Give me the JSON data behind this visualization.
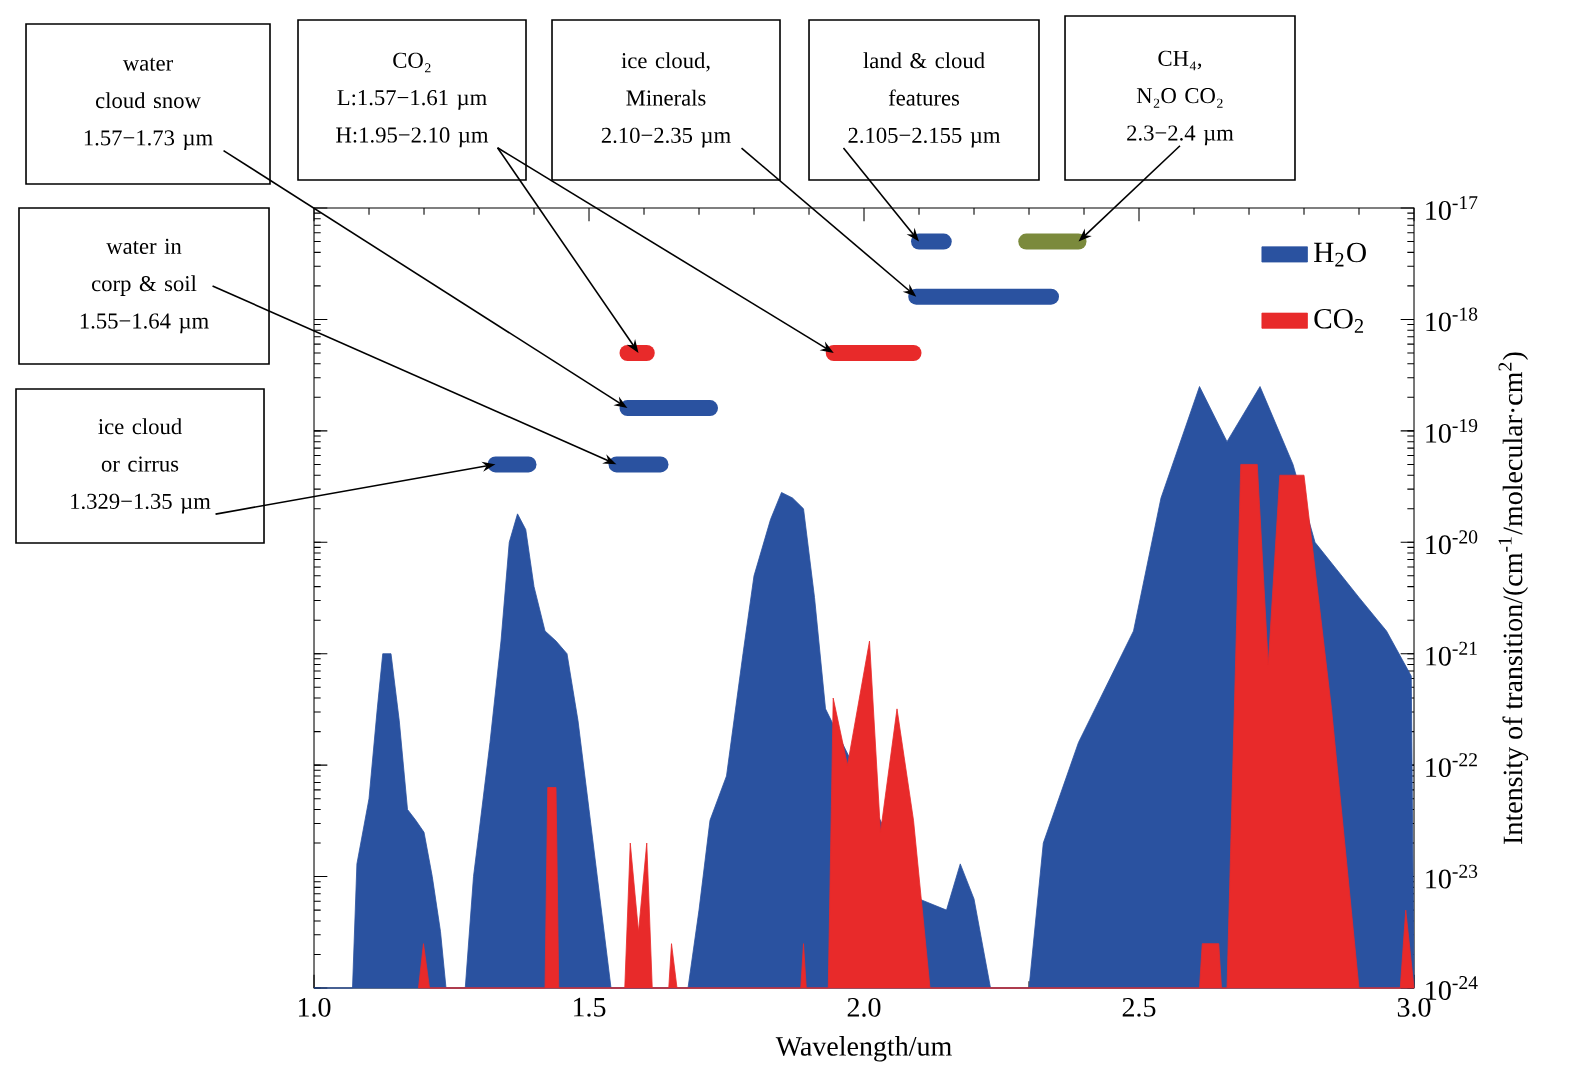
{
  "chart_data": {
    "type": "area",
    "xlabel": "Wavelength/um",
    "ylabel": "Intensity of transition/(cm$^{-1}$/molecular·cm$^{2}$)",
    "xlim": [
      1.0,
      3.0
    ],
    "ylim": [
      1e-24,
      1e-17
    ],
    "xticks": [
      {
        "value": 1.0,
        "label": "1.0"
      },
      {
        "value": 1.5,
        "label": "1.5"
      },
      {
        "value": 2.0,
        "label": "2.0"
      },
      {
        "value": 2.5,
        "label": "2.5"
      },
      {
        "value": 3.0,
        "label": "3.0"
      }
    ],
    "yticks": [
      {
        "value": 1e-24,
        "label": "10$^{-24}$"
      },
      {
        "value": 1e-23,
        "label": "10$^{-23}$"
      },
      {
        "value": 1e-22,
        "label": "10$^{-22}$"
      },
      {
        "value": 1e-21,
        "label": "10$^{-21}$"
      },
      {
        "value": 1e-20,
        "label": "10$^{-20}$"
      },
      {
        "value": 1e-19,
        "label": "10$^{-19}$"
      },
      {
        "value": 1e-18,
        "label": "10$^{-18}$"
      },
      {
        "value": 1e-17,
        "label": "10$^{-17}$"
      }
    ],
    "log": "y",
    "grid": false,
    "legend": "top right",
    "series": [
      {
        "name": "H$_{2}$O",
        "color": "#2a52a0",
        "x": [
          1.0,
          1.07,
          1.078,
          1.1,
          1.115,
          1.125,
          1.14,
          1.155,
          1.17,
          1.185,
          1.2,
          1.215,
          1.23,
          1.24,
          1.275,
          1.29,
          1.3,
          1.32,
          1.34,
          1.355,
          1.37,
          1.385,
          1.4,
          1.42,
          1.44,
          1.46,
          1.48,
          1.5,
          1.52,
          1.54,
          1.68,
          1.7,
          1.72,
          1.75,
          1.78,
          1.8,
          1.83,
          1.85,
          1.87,
          1.89,
          1.91,
          1.93,
          2.1,
          2.15,
          2.175,
          2.2,
          2.23,
          2.3,
          2.326,
          2.39,
          2.49,
          2.54,
          2.61,
          2.66,
          2.72,
          2.78,
          2.82,
          2.9,
          2.95,
          2.995,
          3.0
        ],
        "values": [
          1e-24,
          1e-24,
          1.3e-23,
          5e-23,
          3.2e-22,
          1e-21,
          1e-21,
          2.5e-22,
          4e-23,
          3.2e-23,
          2.5e-23,
          1e-23,
          3.2e-24,
          1e-24,
          1e-24,
          1e-23,
          2.5e-23,
          1.6e-22,
          1.3e-21,
          1e-20,
          1.8e-20,
          1.3e-20,
          4e-21,
          1.6e-21,
          1.3e-21,
          1e-21,
          2.5e-22,
          4e-23,
          6.3e-24,
          1e-24,
          1e-24,
          5e-24,
          3.2e-23,
          8e-23,
          1e-21,
          5e-21,
          1.6e-20,
          2.8e-20,
          2.5e-20,
          2e-20,
          3.2e-21,
          3.2e-22,
          6.3e-24,
          5e-24,
          1.3e-23,
          6.3e-24,
          1e-24,
          1e-24,
          2e-23,
          1.6e-22,
          1.6e-21,
          2.5e-20,
          2.5e-19,
          8e-20,
          2.5e-19,
          5e-20,
          1e-20,
          3.2e-21,
          1.6e-21,
          6.3e-22,
          1e-24
        ]
      },
      {
        "name": "CO$_{2}$",
        "color": "#e82a2a",
        "x": [
          1.19,
          1.199,
          1.21,
          1.42,
          1.425,
          1.44,
          1.445,
          1.565,
          1.575,
          1.59,
          1.605,
          1.615,
          1.645,
          1.65,
          1.66,
          1.885,
          1.89,
          1.895,
          1.935,
          1.944,
          1.97,
          2.01,
          2.03,
          2.06,
          2.09,
          2.12,
          2.61,
          2.615,
          2.645,
          2.65,
          2.66,
          2.685,
          2.715,
          2.735,
          2.756,
          2.8,
          2.85,
          2.9,
          2.975,
          2.985,
          3.0
        ],
        "values": [
          1e-24,
          2.5e-24,
          1e-24,
          1e-24,
          6.3e-23,
          6.3e-23,
          1e-24,
          1e-24,
          2e-23,
          3.2e-24,
          2e-23,
          1e-24,
          1e-24,
          2.5e-24,
          1e-24,
          1e-24,
          2.5e-24,
          1e-24,
          1e-24,
          4e-22,
          1e-22,
          1.3e-21,
          2.5e-23,
          3.2e-22,
          3.2e-23,
          1e-24,
          1e-24,
          2.5e-24,
          2.5e-24,
          1e-24,
          1e-24,
          5e-20,
          5e-20,
          8e-22,
          4e-20,
          4e-20,
          3.2e-22,
          1e-24,
          1e-24,
          5e-24,
          1e-24
        ]
      },
      {
        "type": "line",
        "color": "#2a52a0",
        "x": [
          1.33,
          1.39
        ],
        "values": [
          5e-20,
          5e-20
        ]
      },
      {
        "type": "line",
        "color": "#2a52a0",
        "x": [
          1.55,
          1.63
        ],
        "values": [
          5e-20,
          5e-20
        ]
      },
      {
        "type": "line",
        "color": "#2a52a0",
        "x": [
          1.57,
          1.72
        ],
        "values": [
          1.6e-19,
          1.6e-19
        ]
      },
      {
        "type": "line",
        "color": "#e82a2a",
        "x": [
          1.57,
          1.605,
          null,
          1.945,
          2.09
        ],
        "values": [
          5e-19,
          5e-19,
          null,
          5e-19,
          5e-19
        ]
      },
      {
        "type": "line",
        "color": "#2a52a0",
        "x": [
          2.095,
          2.34
        ],
        "values": [
          1.6e-18,
          1.6e-18
        ]
      },
      {
        "type": "line",
        "color": "#2a52a0",
        "x": [
          2.1,
          2.145
        ],
        "values": [
          5e-18,
          5e-18
        ]
      },
      {
        "type": "line",
        "color": "#7b8a3c",
        "x": [
          2.295,
          2.39
        ],
        "values": [
          5e-18,
          5e-18
        ]
      }
    ],
    "annotations": [
      {
        "text": "water cloud snow 1.57−1.73 µm",
        "x": 1.57,
        "y": 1.6e-19
      },
      {
        "text": "CO₂ L:1.57−1.61 µm H:1.95−2.10 µm",
        "x": 1.59,
        "y": 5e-19
      },
      {
        "text": "ice cloud, Minerals 2.10−2.35 µm",
        "x": 2.095,
        "y": 1.6e-18
      },
      {
        "text": "land & cloud features 2.105−2.155 µm",
        "x": 2.1,
        "y": 5e-18
      },
      {
        "text": "CH₄, N₂O CO₂ 2.3−2.4 µm",
        "x": 2.39,
        "y": 5e-18
      },
      {
        "text": "water in corp & soil 1.55−1.64 µm",
        "x": 1.55,
        "y": 5e-20
      },
      {
        "text": "ice cloud or cirrus 1.329−1.35 µm",
        "x": 1.33,
        "y": 5e-20
      }
    ]
  }
}
